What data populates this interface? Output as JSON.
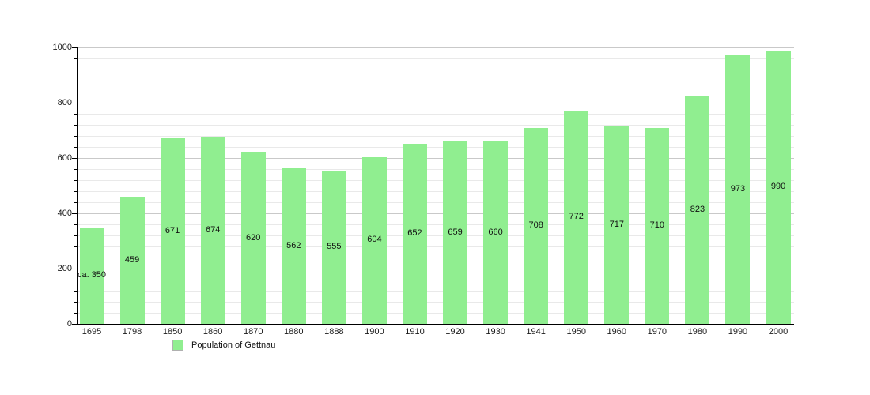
{
  "chart_data": {
    "type": "bar",
    "title": "",
    "categories": [
      "1695",
      "1798",
      "1850",
      "1860",
      "1870",
      "1880",
      "1888",
      "1900",
      "1910",
      "1920",
      "1930",
      "1941",
      "1950",
      "1960",
      "1970",
      "1980",
      "1990",
      "2000"
    ],
    "values": [
      350,
      459,
      671,
      674,
      620,
      562,
      555,
      604,
      652,
      659,
      660,
      708,
      772,
      717,
      710,
      823,
      973,
      990
    ],
    "bar_labels": [
      "ca. 350",
      "459",
      "671",
      "674",
      "620",
      "562",
      "555",
      "604",
      "652",
      "659",
      "660",
      "708",
      "772",
      "717",
      "710",
      "823",
      "973",
      "990"
    ],
    "xlabel": "",
    "ylabel": "",
    "ylim": [
      0,
      1000
    ],
    "y_major_ticks": [
      0,
      200,
      400,
      600,
      800,
      1000
    ],
    "y_tick_labels": [
      "0",
      "200",
      "400",
      "600",
      "800",
      "1000"
    ],
    "y_minor_step": 40,
    "grid": "horizontal",
    "legend_position": "bottom-left",
    "bar_color": "#90ee90",
    "legend": {
      "label": "Population of Gettnau"
    }
  }
}
